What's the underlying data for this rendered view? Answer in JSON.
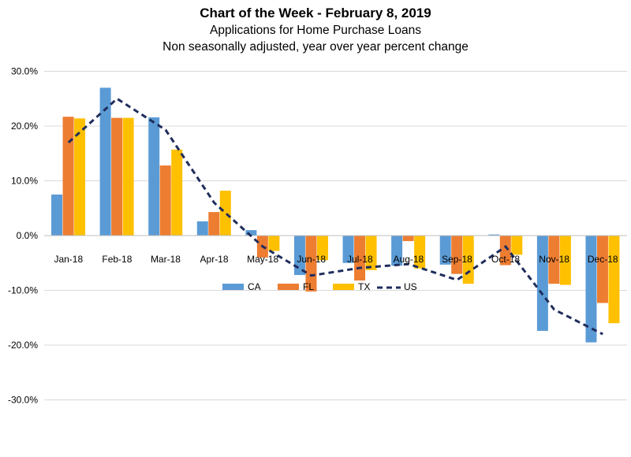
{
  "chart_data": {
    "type": "bar",
    "title": "Chart of the Week - February 8, 2019",
    "subtitle_1": "Applications for Home Purchase Loans",
    "subtitle_2": "Non seasonally adjusted, year over year percent change",
    "categories": [
      "Jan-18",
      "Feb-18",
      "Mar-18",
      "Apr-18",
      "May-18",
      "Jun-18",
      "Jul-18",
      "Aug-18",
      "Sep-18",
      "Oct-18",
      "Nov-18",
      "Dec-18"
    ],
    "series": [
      {
        "name": "CA",
        "type": "bar",
        "color": "#5b9bd5",
        "values": [
          7.5,
          27.0,
          21.6,
          2.6,
          1.0,
          -7.2,
          -5.0,
          -5.5,
          -5.3,
          0.2,
          -17.4,
          -19.5
        ]
      },
      {
        "name": "FL",
        "type": "bar",
        "color": "#ed7d31",
        "values": [
          21.7,
          21.5,
          12.8,
          4.3,
          -4.0,
          -10.2,
          -8.2,
          -1.0,
          -7.0,
          -5.4,
          -8.8,
          -12.3
        ]
      },
      {
        "name": "TX",
        "type": "bar",
        "color": "#ffc000",
        "values": [
          21.4,
          21.5,
          15.7,
          8.2,
          -2.8,
          -4.5,
          -6.3,
          -6.0,
          -8.8,
          -3.5,
          -9.0,
          -16.0
        ]
      },
      {
        "name": "US",
        "type": "line",
        "color": "#1f2d5c",
        "dash": "dashed",
        "values": [
          17.0,
          25.0,
          19.3,
          6.0,
          -2.0,
          -7.3,
          -5.9,
          -5.2,
          -8.1,
          -2.0,
          -13.5,
          -18.0
        ]
      }
    ],
    "y_ticks": [
      "30.0%",
      "20.0%",
      "10.0%",
      "0.0%",
      "-10.0%",
      "-20.0%",
      "-30.0%"
    ],
    "ylim": [
      -30,
      30
    ],
    "grid": true,
    "legend_position": "bottom"
  }
}
